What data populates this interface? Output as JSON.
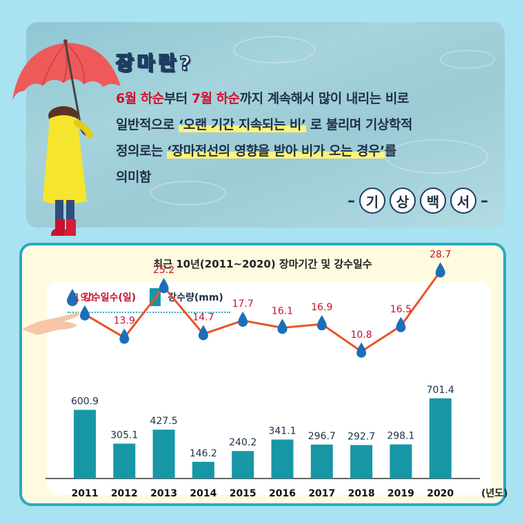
{
  "header": {
    "title": "장마란?",
    "line1": {
      "p1": "6월 하순",
      "p2": "부터 ",
      "p3": "7월 하순",
      "p4": "까지 계속해서 많이 내리는 비로"
    },
    "line2": {
      "p1": "일반적으로 ",
      "p2": "‘오랜 기간 지속되는 비’",
      "p3": " 로 불리며 기상학적"
    },
    "line3": {
      "p1": "정의로는 ",
      "p2": "‘장마전선의 영향을 받아 비가 오는 경우’",
      "p3": "를"
    },
    "line4": "의미함",
    "source_chars": [
      "기",
      "상",
      "백",
      "서"
    ],
    "dash": "–"
  },
  "colors": {
    "bar": "#1797a6",
    "line": "#e9532a",
    "drop": "#1a6fb8",
    "days_label": "#c8102e",
    "accent_border": "#2aa9bf"
  },
  "chart_data": {
    "type": "bar",
    "title": "최근 10년(2011~2020) 장마기간 및 강수일수",
    "categories": [
      "2011",
      "2012",
      "2013",
      "2014",
      "2015",
      "2016",
      "2017",
      "2018",
      "2019",
      "2020"
    ],
    "x_unit": "(년도)",
    "series": [
      {
        "name": "강수량(mm)",
        "type": "bar",
        "values": [
          600.9,
          305.1,
          427.5,
          146.2,
          240.2,
          341.1,
          296.7,
          292.7,
          298.1,
          701.4
        ]
      },
      {
        "name": "강수일수(일)",
        "type": "line",
        "values": [
          19.1,
          13.9,
          25.2,
          14.7,
          17.7,
          16.1,
          16.9,
          10.8,
          16.5,
          28.7
        ]
      }
    ],
    "bar_labels": [
      "600.9",
      "305.1",
      "427.5",
      "146.2",
      "240.2",
      "341.1",
      "296.7",
      "292.7",
      "298.1",
      "701.4"
    ],
    "line_labels": [
      "19.1",
      "13.9",
      "25.2",
      "14.7",
      "17.7",
      "16.1",
      "16.9",
      "10.8",
      "16.5",
      "28.7"
    ],
    "legend_placement": "top-left",
    "grid": false
  }
}
